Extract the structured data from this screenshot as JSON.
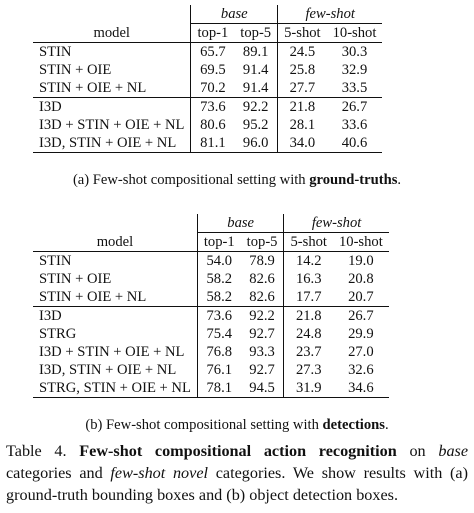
{
  "table_a": {
    "group_headers": {
      "base": "base",
      "few_shot": "few-shot"
    },
    "columns": {
      "model": "model",
      "top1": "top-1",
      "top5": "top-5",
      "shot5": "5-shot",
      "shot10": "10-shot"
    },
    "section1": [
      {
        "model": "STIN",
        "top1": "65.7",
        "top5": "89.1",
        "shot5": "24.5",
        "shot10": "30.3"
      },
      {
        "model": "STIN + OIE",
        "top1": "69.5",
        "top5": "91.4",
        "shot5": "25.8",
        "shot10": "32.9"
      },
      {
        "model": "STIN + OIE + NL",
        "top1": "70.2",
        "top5": "91.4",
        "shot5": "27.7",
        "shot10": "33.5"
      }
    ],
    "section2": [
      {
        "model": "I3D",
        "top1": "73.6",
        "top5": "92.2",
        "shot5": "21.8",
        "shot10": "26.7"
      },
      {
        "model": "I3D + STIN + OIE + NL",
        "top1": "80.6",
        "top5": "95.2",
        "shot5": "28.1",
        "shot10": "33.6"
      },
      {
        "model": "I3D, STIN + OIE + NL",
        "top1": "81.1",
        "top5": "96.0",
        "shot5": "34.0",
        "shot10": "40.6"
      }
    ],
    "caption_prefix": "(a) Few-shot compositional setting with ",
    "caption_bold": "ground-truths",
    "caption_suffix": "."
  },
  "table_b": {
    "group_headers": {
      "base": "base",
      "few_shot": "few-shot"
    },
    "columns": {
      "model": "model",
      "top1": "top-1",
      "top5": "top-5",
      "shot5": "5-shot",
      "shot10": "10-shot"
    },
    "section1": [
      {
        "model": "STIN",
        "top1": "54.0",
        "top5": "78.9",
        "shot5": "14.2",
        "shot10": "19.0"
      },
      {
        "model": "STIN + OIE",
        "top1": "58.2",
        "top5": "82.6",
        "shot5": "16.3",
        "shot10": "20.8"
      },
      {
        "model": "STIN + OIE + NL",
        "top1": "58.2",
        "top5": "82.6",
        "shot5": "17.7",
        "shot10": "20.7"
      }
    ],
    "section2": [
      {
        "model": "I3D",
        "top1": "73.6",
        "top5": "92.2",
        "shot5": "21.8",
        "shot10": "26.7"
      },
      {
        "model": "STRG",
        "top1": "75.4",
        "top5": "92.7",
        "shot5": "24.8",
        "shot10": "29.9"
      },
      {
        "model": "I3D + STIN + OIE + NL",
        "top1": "76.8",
        "top5": "93.3",
        "shot5": "23.7",
        "shot10": "27.0"
      },
      {
        "model": "I3D, STIN + OIE + NL",
        "top1": "76.1",
        "top5": "92.7",
        "shot5": "27.3",
        "shot10": "32.6"
      },
      {
        "model": "STRG, STIN + OIE + NL",
        "top1": "78.1",
        "top5": "94.5",
        "shot5": "31.9",
        "shot10": "34.6"
      }
    ],
    "caption_prefix": "(b) Few-shot compositional setting with ",
    "caption_bold": "detections",
    "caption_suffix": "."
  },
  "table_caption": {
    "label": "Table 4.",
    "bold": "Few-shot compositional action recognition",
    "t1": " on ",
    "i1": "base",
    "t2": " categories and ",
    "i2": "few-shot novel",
    "t3": " categories.  We show results with (a) ground-truth bounding boxes and (b) object detection boxes."
  }
}
